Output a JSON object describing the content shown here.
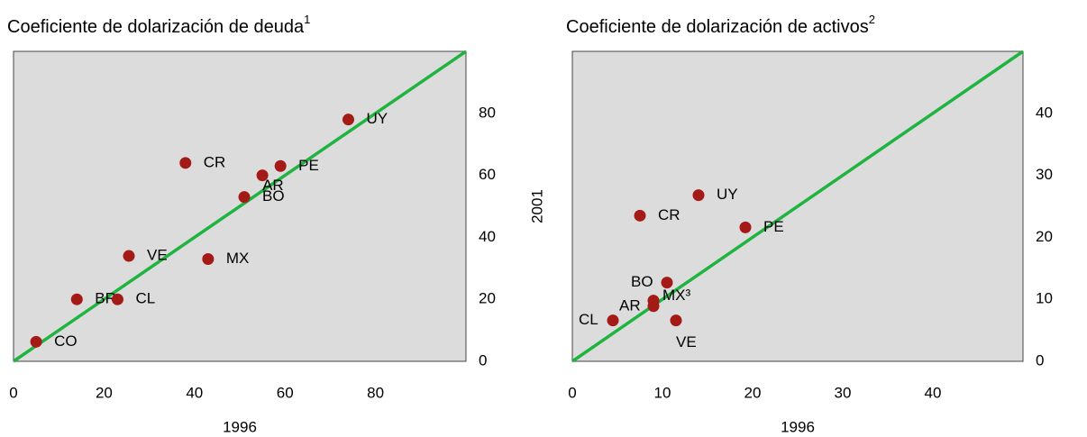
{
  "chart_data": [
    {
      "type": "scatter",
      "title": "Coeficiente de dolarización de deuda",
      "title_sup": "1",
      "xlabel": "1996",
      "ylabel": "2001",
      "labels": [
        "CO",
        "BR",
        "CL",
        "VE",
        "MX",
        "CR",
        "BO",
        "AR",
        "PE",
        "UY"
      ],
      "x": [
        5,
        14,
        23,
        25.5,
        43,
        38,
        51,
        55,
        59,
        74
      ],
      "y": [
        6.3,
        20,
        20,
        34,
        33,
        64,
        53,
        60,
        63,
        78
      ],
      "color": "#a31a17",
      "diagonal": true,
      "diagonal_color": "#1fb340",
      "xlim": [
        0,
        100
      ],
      "ylim": [
        0,
        100
      ],
      "xticks": [
        0,
        20,
        40,
        60,
        80
      ],
      "yticks": [
        0,
        20,
        40,
        60,
        80
      ]
    },
    {
      "type": "scatter",
      "title": "Coeficiente de dolarización de activos",
      "title_sup": "2",
      "xlabel": "1996",
      "ylabel": "2001",
      "labels": [
        "CL",
        "AR",
        "MX³",
        "BO",
        "VE",
        "CR",
        "UY",
        "PE"
      ],
      "x": [
        4.5,
        9,
        9,
        10.5,
        11.5,
        7.5,
        14,
        19.2
      ],
      "y": [
        6.6,
        8.9,
        9.8,
        12.7,
        6.6,
        23.5,
        26.8,
        21.6
      ],
      "color": "#a31a17",
      "diagonal": true,
      "diagonal_color": "#1fb340",
      "xlim": [
        0,
        50
      ],
      "ylim": [
        0,
        50
      ],
      "xticks": [
        0,
        10,
        20,
        30,
        40
      ],
      "yticks": [
        0,
        10,
        20,
        30,
        40
      ]
    }
  ]
}
